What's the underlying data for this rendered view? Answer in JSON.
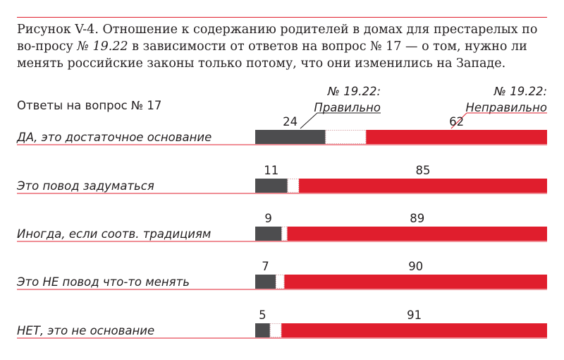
{
  "figure": {
    "title_prefix": "Рисунок V-4. Отношение к содержанию родителей в домах для престарелых по во-просу ",
    "title_num": "№ 19.22",
    "title_suffix": " в зависимости от ответов на вопрос № 17 — о том, нужно ли менять российские законы только потому, что они изменились на Западе.",
    "column_header": "Ответы на вопрос № 17"
  },
  "chart_data": {
    "type": "bar",
    "stacked": true,
    "orientation": "horizontal",
    "title": "Рисунок V-4. Отношение к содержанию родителей в домах для престарелых по вопросу № 19.22 в зависимости от ответов на вопрос № 17 — о том, нужно ли менять российские законы только потому, что они изменились на Западе.",
    "categories_header": "Ответы на вопрос № 17",
    "categories": [
      "ДА, это достаточное основание",
      "Это повод задуматься",
      "Иногда, если соотв. традициям",
      "Это НЕ повод что-то менять",
      "НЕТ, это не основание"
    ],
    "xlim": [
      0,
      100
    ],
    "series": [
      {
        "name_line1": "№ 19.22:",
        "name_line2": "Правильно",
        "values": [
          24,
          11,
          9,
          7,
          5
        ],
        "color": "#4d4d4f"
      },
      {
        "name_line1": "№ 19.22:",
        "name_line2": "Неправильно",
        "values": [
          62,
          85,
          89,
          90,
          91
        ],
        "color": "#e01e2d"
      }
    ],
    "remainder_style": "dotted-outline",
    "colors": {
      "accent": "#e01e2d",
      "dark": "#4d4d4f",
      "text": "#231f20"
    }
  }
}
